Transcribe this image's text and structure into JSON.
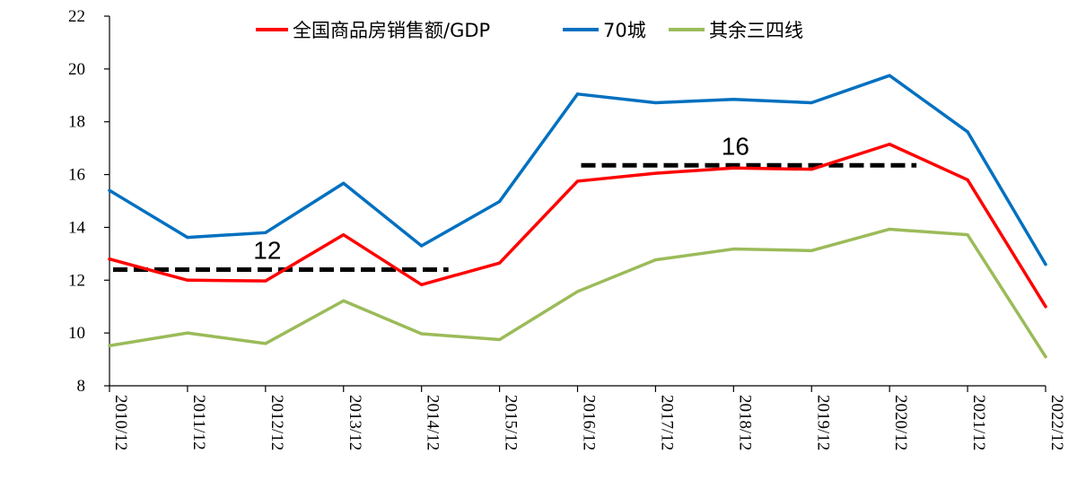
{
  "chart_data": {
    "type": "line",
    "title": "",
    "xlabel": "",
    "ylabel": "",
    "ylim": [
      8,
      22
    ],
    "yticks": [
      8,
      10,
      12,
      14,
      16,
      18,
      20,
      22
    ],
    "grid": false,
    "legend_position": "top-center",
    "categories": [
      "2010/12",
      "2011/12",
      "2012/12",
      "2013/12",
      "2014/12",
      "2015/12",
      "2016/12",
      "2017/12",
      "2018/12",
      "2019/12",
      "2020/12",
      "2021/12",
      "2022/12"
    ],
    "series": [
      {
        "name": "全国商品房销售额/GDP",
        "color": "#ff0000",
        "values": [
          12.8,
          12.0,
          11.97,
          13.72,
          11.83,
          12.65,
          15.75,
          16.05,
          16.25,
          16.2,
          17.15,
          15.8,
          11.0
        ]
      },
      {
        "name": "70城",
        "color": "#0070c0",
        "values": [
          15.4,
          13.62,
          13.8,
          15.67,
          13.3,
          14.98,
          19.05,
          18.72,
          18.85,
          18.72,
          19.75,
          17.62,
          12.6
        ]
      },
      {
        "name": "其余三四线",
        "color": "#9bbb59",
        "values": [
          9.52,
          10.0,
          9.6,
          11.22,
          9.97,
          9.75,
          11.57,
          12.77,
          13.18,
          13.12,
          13.93,
          13.72,
          9.1
        ]
      }
    ],
    "annotations": [
      {
        "label": "12",
        "level": 12.4,
        "from": "2010/12",
        "to": "2014/12",
        "style": "dashed",
        "color": "#000000"
      },
      {
        "label": "16",
        "level": 16.35,
        "from": "2016/12",
        "to": "2020/12",
        "style": "dashed",
        "color": "#000000"
      }
    ]
  }
}
